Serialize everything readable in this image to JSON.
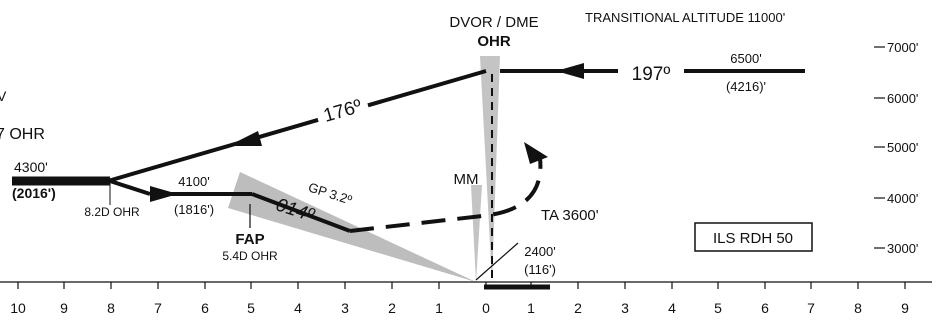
{
  "header": {
    "transitional_altitude": "TRANSITIONAL  ALTITUDE  11000'"
  },
  "navaid": {
    "type": "DVOR / DME",
    "ident": "OHR"
  },
  "left_fragments": {
    "top": "V",
    "middle": "7 OHR"
  },
  "altitude_scale": [
    "7000'",
    "6000'",
    "5000'",
    "4000'",
    "3000'"
  ],
  "distance_scale": [
    "10",
    "9",
    "8",
    "7",
    "6",
    "5",
    "4",
    "3",
    "2",
    "1",
    "0",
    "1",
    "2",
    "3",
    "4",
    "5",
    "6",
    "7",
    "8",
    "9"
  ],
  "inbound": {
    "course": "197º",
    "altitude": "6500'",
    "height": "(4216)'"
  },
  "outbound": {
    "course": "176º"
  },
  "initial_fix": {
    "altitude": "4300'",
    "height": "(2016')",
    "distance": "8.2D OHR"
  },
  "intermediate": {
    "altitude": "4100'",
    "height": "(1816')"
  },
  "final": {
    "course": "014º",
    "glidepath": "GP 3.2º"
  },
  "fap": {
    "label": "FAP",
    "distance": "5.4D OHR"
  },
  "middle_marker": "MM",
  "missed_approach": {
    "turn_altitude": "TA 3600'"
  },
  "threshold": {
    "altitude": "2400'",
    "height": "(116')"
  },
  "ils_box": "ILS RDH 50"
}
